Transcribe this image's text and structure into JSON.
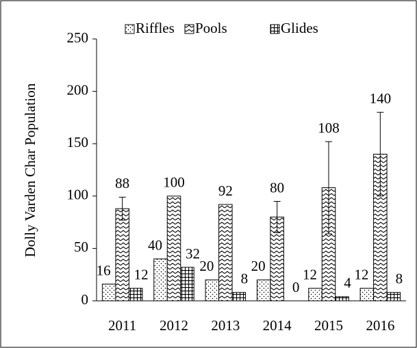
{
  "chart_data": {
    "type": "bar",
    "y_label": "Dolly Varden Char Population",
    "categories": [
      "2011",
      "2012",
      "2013",
      "2014",
      "2015",
      "2016"
    ],
    "series": [
      {
        "name": "Riffles",
        "color": "#000000",
        "pattern": "dots",
        "values": [
          16,
          40,
          20,
          20,
          12,
          12
        ]
      },
      {
        "name": "Pools",
        "color": "#000000",
        "pattern": "zigzag",
        "values": [
          88,
          100,
          92,
          80,
          108,
          140
        ],
        "errors": [
          11,
          0,
          0,
          15,
          44,
          40
        ]
      },
      {
        "name": "Glides",
        "color": "#000000",
        "pattern": "grid",
        "values": [
          12,
          32,
          8,
          0,
          4,
          8
        ]
      }
    ],
    "ylim": [
      0,
      250
    ],
    "yticks": [
      0,
      50,
      100,
      150,
      200,
      250
    ],
    "legend": "top",
    "data_labels": true
  }
}
